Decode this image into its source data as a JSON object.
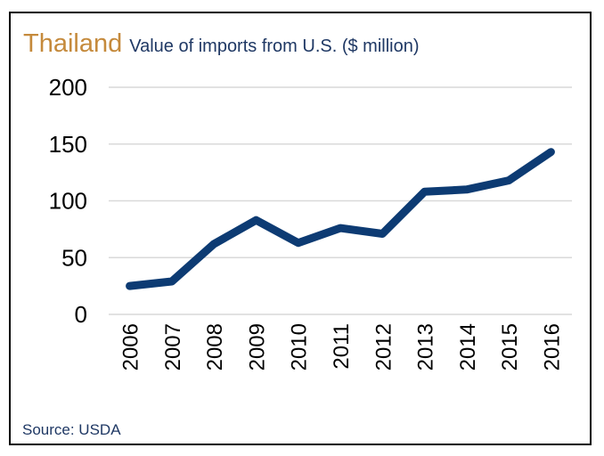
{
  "chart_data": {
    "type": "line",
    "title": "Thailand",
    "subtitle": "Value of imports from U.S. ($ million)",
    "x": [
      "2006",
      "2007",
      "2008",
      "2009",
      "2010",
      "2011",
      "2012",
      "2013",
      "2014",
      "2015",
      "2016"
    ],
    "series": [
      {
        "values": [
          25,
          29,
          62,
          83,
          63,
          76,
          71,
          108,
          110,
          118,
          143
        ]
      }
    ],
    "ylim": [
      0,
      200
    ],
    "yticks": [
      "0",
      "50",
      "100",
      "150",
      "200"
    ],
    "grid": true,
    "line_color": "#0d3b73",
    "source": "Source: USDA"
  }
}
